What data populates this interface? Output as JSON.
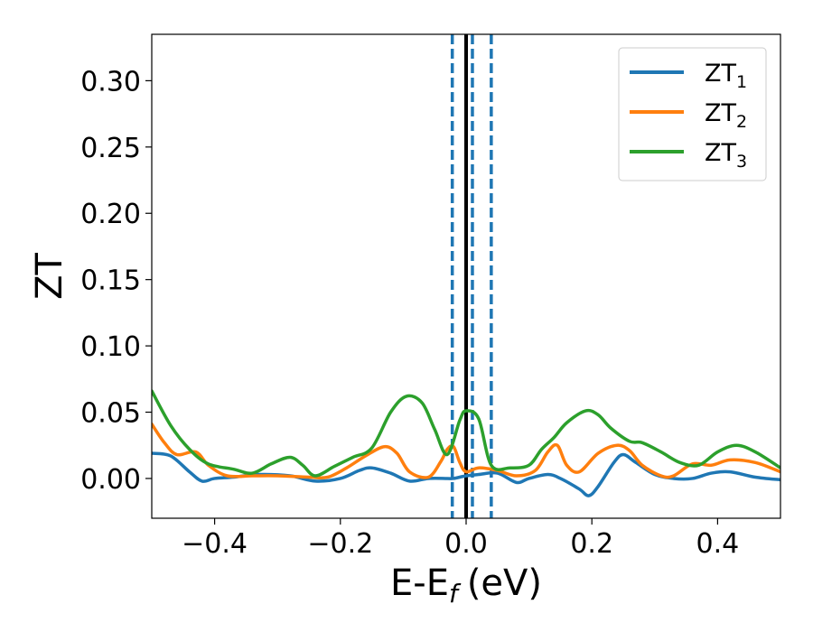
{
  "chart_data": {
    "type": "line",
    "xlabel": "E-E",
    "xlabel_sub": "f",
    "xlabel_unit": "(eV)",
    "ylabel": "ZT",
    "xlim": [
      -0.5,
      0.5
    ],
    "ylim": [
      -0.03,
      0.335
    ],
    "xticks": [
      -0.4,
      -0.2,
      0.0,
      0.2,
      0.4
    ],
    "xtick_labels": [
      "−0.4",
      "−0.2",
      "0.0",
      "0.2",
      "0.4"
    ],
    "yticks": [
      0.0,
      0.05,
      0.1,
      0.15,
      0.2,
      0.25,
      0.3
    ],
    "ytick_labels": [
      "0.00",
      "0.05",
      "0.10",
      "0.15",
      "0.20",
      "0.25",
      "0.30"
    ],
    "grid": false,
    "legend_position": "top-right",
    "vlines": {
      "solid": {
        "x": 0.0,
        "color": "#000000"
      },
      "dashed": {
        "x": [
          -0.022,
          0.01,
          0.04
        ],
        "color": "#1f77b4"
      }
    },
    "series": [
      {
        "name": "ZT",
        "sub": "1",
        "color": "#1f77b4",
        "x": [
          -0.5,
          -0.47,
          -0.44,
          -0.42,
          -0.4,
          -0.37,
          -0.33,
          -0.28,
          -0.24,
          -0.2,
          -0.17,
          -0.15,
          -0.12,
          -0.09,
          -0.06,
          -0.03,
          -0.02,
          0.0,
          0.02,
          0.05,
          0.08,
          0.1,
          0.13,
          0.15,
          0.18,
          0.195,
          0.21,
          0.235,
          0.25,
          0.27,
          0.3,
          0.33,
          0.36,
          0.39,
          0.42,
          0.46,
          0.5
        ],
        "y": [
          0.019,
          0.017,
          0.005,
          -0.002,
          0.0,
          0.001,
          0.003,
          0.002,
          -0.002,
          0.0,
          0.006,
          0.008,
          0.004,
          -0.002,
          0.0,
          0.0,
          0.0,
          0.002,
          0.003,
          0.004,
          -0.003,
          0.0,
          0.003,
          0.0,
          -0.008,
          -0.013,
          -0.006,
          0.012,
          0.018,
          0.012,
          0.003,
          0.0,
          0.0,
          0.004,
          0.005,
          0.001,
          -0.001
        ]
      },
      {
        "name": "ZT",
        "sub": "2",
        "color": "#ff7f0e",
        "x": [
          -0.5,
          -0.48,
          -0.46,
          -0.43,
          -0.41,
          -0.38,
          -0.34,
          -0.3,
          -0.25,
          -0.22,
          -0.19,
          -0.16,
          -0.13,
          -0.11,
          -0.09,
          -0.06,
          -0.04,
          -0.03,
          -0.02,
          -0.01,
          0.0,
          0.02,
          0.05,
          0.08,
          0.11,
          0.13,
          0.145,
          0.16,
          0.18,
          0.21,
          0.24,
          0.26,
          0.28,
          0.31,
          0.33,
          0.36,
          0.39,
          0.42,
          0.46,
          0.5
        ],
        "y": [
          0.041,
          0.027,
          0.018,
          0.02,
          0.01,
          0.002,
          0.002,
          0.002,
          0.001,
          0.001,
          0.008,
          0.017,
          0.024,
          0.019,
          0.005,
          0.001,
          0.013,
          0.022,
          0.024,
          0.012,
          0.005,
          0.008,
          0.006,
          0.002,
          0.006,
          0.02,
          0.025,
          0.01,
          0.005,
          0.019,
          0.025,
          0.021,
          0.01,
          0.002,
          0.002,
          0.011,
          0.01,
          0.014,
          0.012,
          0.005
        ]
      },
      {
        "name": "ZT",
        "sub": "3",
        "color": "#2ca02c",
        "x": [
          -0.5,
          -0.47,
          -0.44,
          -0.41,
          -0.37,
          -0.34,
          -0.31,
          -0.28,
          -0.26,
          -0.24,
          -0.21,
          -0.18,
          -0.15,
          -0.12,
          -0.095,
          -0.07,
          -0.05,
          -0.03,
          -0.01,
          0.0,
          0.02,
          0.04,
          0.07,
          0.1,
          0.12,
          0.14,
          0.16,
          0.19,
          0.21,
          0.23,
          0.26,
          0.28,
          0.31,
          0.34,
          0.37,
          0.4,
          0.43,
          0.46,
          0.5
        ],
        "y": [
          0.066,
          0.04,
          0.022,
          0.011,
          0.007,
          0.004,
          0.011,
          0.016,
          0.01,
          0.002,
          0.009,
          0.016,
          0.023,
          0.05,
          0.062,
          0.057,
          0.037,
          0.018,
          0.044,
          0.051,
          0.045,
          0.01,
          0.008,
          0.01,
          0.022,
          0.031,
          0.042,
          0.051,
          0.048,
          0.038,
          0.028,
          0.027,
          0.02,
          0.012,
          0.01,
          0.02,
          0.025,
          0.02,
          0.008
        ]
      }
    ]
  }
}
